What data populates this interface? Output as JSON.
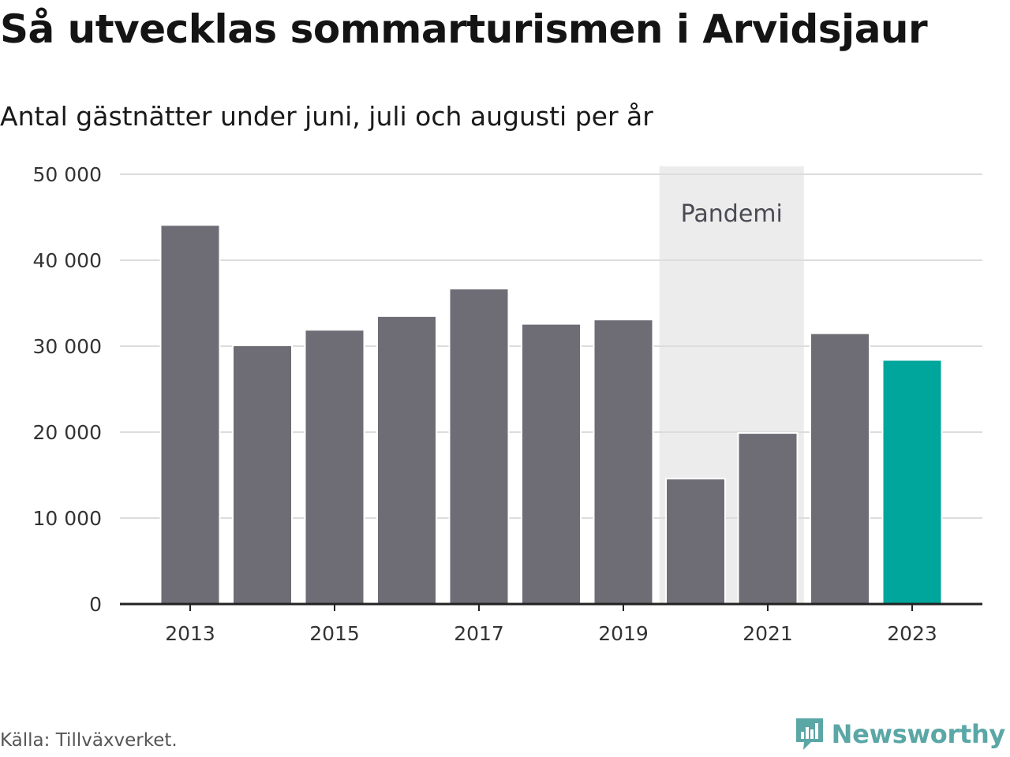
{
  "header": {
    "title": "Så utvecklas sommarturismen i Arvidsjaur",
    "subtitle": "Antal gästnätter under juni, juli och augusti per år"
  },
  "footer": {
    "source": "Källa: Tillväxverket.",
    "brand": "Newsworthy"
  },
  "colors": {
    "bar": "#6e6d75",
    "highlight": "#00a59b",
    "shade": "#ececec",
    "grid": "#dcdcdc",
    "axis": "#222222",
    "brand": "#5aa7a6"
  },
  "chart_data": {
    "type": "bar",
    "title": "Så utvecklas sommarturismen i Arvidsjaur",
    "subtitle": "Antal gästnätter under juni, juli och augusti per år",
    "xlabel": "",
    "ylabel": "",
    "categories": [
      2013,
      2014,
      2015,
      2016,
      2017,
      2018,
      2019,
      2020,
      2021,
      2022,
      2023
    ],
    "values": [
      44100,
      30100,
      31900,
      33500,
      36700,
      32600,
      33100,
      14600,
      19900,
      31500,
      28400
    ],
    "highlight_category": 2023,
    "ylim": [
      0,
      50000
    ],
    "y_ticks": [
      0,
      10000,
      20000,
      30000,
      40000,
      50000
    ],
    "y_tick_labels": [
      "0",
      "10 000",
      "20 000",
      "30 000",
      "40 000",
      "50 000"
    ],
    "x_ticks": [
      2013,
      2015,
      2017,
      2019,
      2021,
      2023
    ],
    "x_tick_labels": [
      "2013",
      "2015",
      "2017",
      "2019",
      "2021",
      "2023"
    ],
    "grid": true,
    "annotation": {
      "text": "Pandemi",
      "from": 2020,
      "to": 2021
    }
  }
}
